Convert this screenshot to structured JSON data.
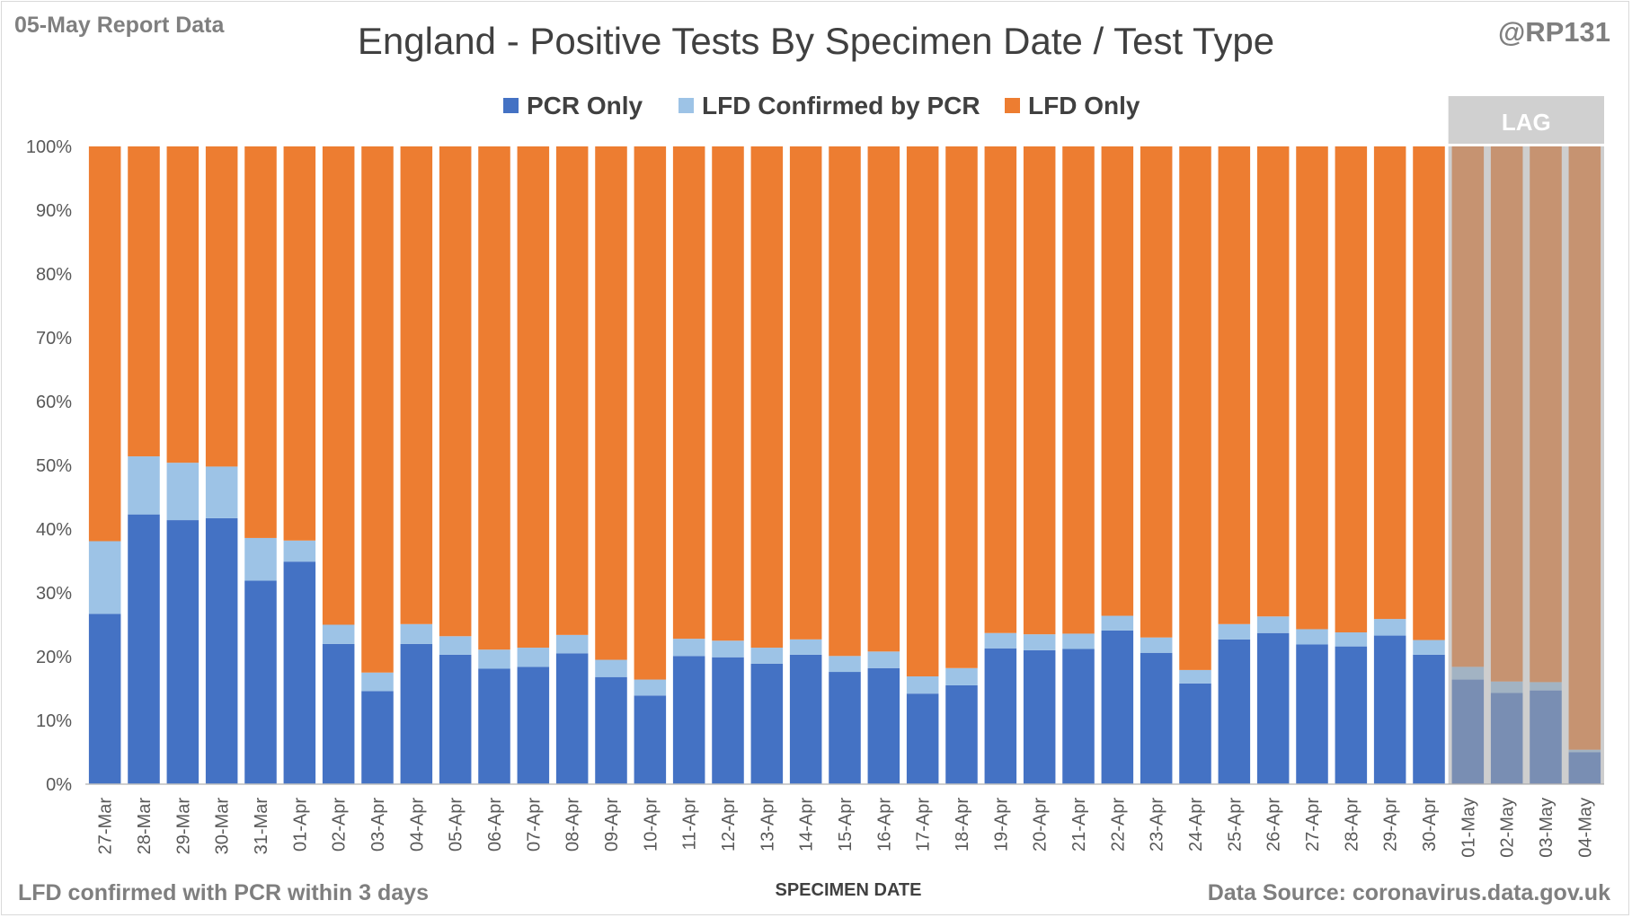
{
  "header": {
    "report_label": "05-May Report Data",
    "handle": "@RP131"
  },
  "footer": {
    "footnote": "LFD confirmed with PCR within 3 days",
    "source": "Data Source: coronavirus.data.gov.uk"
  },
  "lag_label": "LAG",
  "chart_data": {
    "type": "bar",
    "stacked": true,
    "title": "England - Positive Tests By Specimen Date / Test Type",
    "xlabel": "SPECIMEN DATE",
    "ylabel": "",
    "ylim": [
      0,
      100
    ],
    "yticks": [
      "0%",
      "10%",
      "20%",
      "30%",
      "40%",
      "50%",
      "60%",
      "70%",
      "80%",
      "90%",
      "100%"
    ],
    "grid": false,
    "legend_position": "top",
    "categories": [
      "27-Mar",
      "28-Mar",
      "29-Mar",
      "30-Mar",
      "31-Mar",
      "01-Apr",
      "02-Apr",
      "03-Apr",
      "04-Apr",
      "05-Apr",
      "06-Apr",
      "07-Apr",
      "08-Apr",
      "09-Apr",
      "10-Apr",
      "11-Apr",
      "12-Apr",
      "13-Apr",
      "14-Apr",
      "15-Apr",
      "16-Apr",
      "17-Apr",
      "18-Apr",
      "19-Apr",
      "20-Apr",
      "21-Apr",
      "22-Apr",
      "23-Apr",
      "24-Apr",
      "25-Apr",
      "26-Apr",
      "27-Apr",
      "28-Apr",
      "29-Apr",
      "30-Apr",
      "01-May",
      "02-May",
      "03-May",
      "04-May"
    ],
    "series": [
      {
        "name": "PCR Only",
        "color": "#4472c4",
        "values": [
          26.7,
          42.3,
          41.4,
          41.7,
          31.9,
          34.9,
          22.0,
          14.6,
          22.0,
          20.3,
          18.1,
          18.4,
          20.5,
          16.8,
          13.9,
          20.1,
          19.9,
          18.9,
          20.3,
          17.6,
          18.2,
          14.2,
          15.5,
          21.3,
          21.0,
          21.2,
          24.1,
          20.6,
          15.8,
          22.7,
          23.7,
          21.9,
          21.6,
          23.3,
          20.3,
          16.4,
          14.3,
          14.7,
          5.0
        ]
      },
      {
        "name": "LFD Confirmed by PCR",
        "color": "#9dc3e6",
        "values": [
          11.4,
          9.1,
          9.0,
          8.1,
          6.7,
          3.3,
          3.0,
          2.9,
          3.1,
          2.9,
          3.0,
          3.0,
          2.9,
          2.7,
          2.5,
          2.7,
          2.6,
          2.5,
          2.4,
          2.5,
          2.6,
          2.7,
          2.7,
          2.4,
          2.5,
          2.4,
          2.3,
          2.4,
          2.1,
          2.4,
          2.6,
          2.4,
          2.2,
          2.6,
          2.3,
          2.0,
          1.8,
          1.3,
          0.4
        ]
      },
      {
        "name": "LFD Only",
        "color": "#ed7d31",
        "values": [
          61.9,
          48.6,
          49.6,
          50.2,
          61.4,
          61.8,
          75.0,
          82.5,
          74.9,
          76.8,
          78.9,
          78.6,
          76.6,
          80.5,
          83.6,
          77.2,
          77.5,
          78.6,
          77.3,
          79.9,
          79.2,
          83.1,
          81.8,
          76.3,
          76.5,
          76.4,
          73.6,
          77.0,
          82.1,
          74.9,
          73.7,
          75.7,
          76.2,
          74.1,
          77.4,
          81.6,
          83.9,
          84.0,
          94.6
        ]
      }
    ],
    "lag_categories": [
      "01-May",
      "02-May",
      "03-May",
      "04-May"
    ]
  }
}
